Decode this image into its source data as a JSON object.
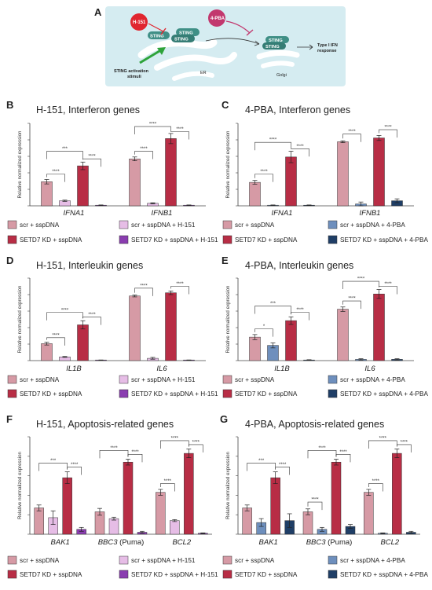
{
  "schematic": {
    "letter": "A",
    "inhibitor1": "H-151",
    "inhibitor2": "4-PBA",
    "sting": "STING",
    "stimuli_line1": "STING activation",
    "stimuli_line2": "stimuli",
    "er": "ER",
    "golgi": "Golgi",
    "response_line1": "Type I IFN",
    "response_line2": "response",
    "colors": {
      "bg": "#d5ecf1",
      "membrane": "#ffffff",
      "sting": "#3f8f86",
      "h151": "#e0262f",
      "pba": "#c2386e",
      "arrow": "#2ea33a"
    }
  },
  "legends": {
    "h151": [
      "scr + sspDNA",
      "scr + sspDNA + H-151",
      "SETD7 KD + sspDNA",
      "SETD7 KD + sspDNA + H-151"
    ],
    "pba": [
      "scr + sspDNA",
      "scr + sspDNA + 4-PBA",
      "SETD7 KD + sspDNA",
      "SETD7 KD + sspDNA + 4-PBA"
    ]
  },
  "colors": {
    "scr": "#d69aa5",
    "scr_h151": "#e6bde6",
    "kd": "#b82d45",
    "kd_h151": "#8a3db0",
    "scr_pba": "#6e8fbd",
    "kd_pba": "#1f3e66"
  },
  "chart_data": [
    {
      "letter": "B",
      "title": "H-151, Interferon genes",
      "type": "bar",
      "ylabel": "Relative normalized expression",
      "categories": [
        "IFNA1",
        "IFNB1"
      ],
      "palette": [
        "scr",
        "scr_h151",
        "kd",
        "kd_h151"
      ],
      "series": [
        {
          "values": [
            0.38,
            0.74
          ],
          "errors": [
            0.035,
            0.03
          ]
        },
        {
          "values": [
            0.08,
            0.04
          ],
          "errors": [
            0.01,
            0.008
          ]
        },
        {
          "values": [
            0.63,
            1.06
          ],
          "errors": [
            0.06,
            0.08
          ]
        },
        {
          "values": [
            0.01,
            0.01
          ],
          "errors": [
            0.004,
            0.004
          ]
        }
      ],
      "ylim": [
        0,
        1.3
      ],
      "sig": [
        {
          "g": 0,
          "a": 0,
          "b": 1,
          "text": "****",
          "y": 0.5
        },
        {
          "g": 0,
          "a": 0,
          "b": 2,
          "text": "***",
          "y": 0.86
        },
        {
          "g": 0,
          "a": 2,
          "b": 3,
          "text": "****",
          "y": 0.74
        },
        {
          "g": 1,
          "a": 0,
          "b": 1,
          "text": "****",
          "y": 0.86
        },
        {
          "g": 1,
          "a": 0,
          "b": 2,
          "text": "****",
          "y": 1.25
        },
        {
          "g": 1,
          "a": 2,
          "b": 3,
          "text": "****",
          "y": 1.17
        }
      ]
    },
    {
      "letter": "C",
      "title": "4-PBA, Interferon genes",
      "type": "bar",
      "ylabel": "Relative normalized expression",
      "categories": [
        "IFNA1",
        "IFNB1"
      ],
      "palette": [
        "scr",
        "scr_pba",
        "kd",
        "kd_pba"
      ],
      "series": [
        {
          "values": [
            0.37,
            1.01
          ],
          "errors": [
            0.03,
            0.015
          ]
        },
        {
          "values": [
            0.01,
            0.03
          ],
          "errors": [
            0.004,
            0.03
          ]
        },
        {
          "values": [
            0.77,
            1.07
          ],
          "errors": [
            0.09,
            0.04
          ]
        },
        {
          "values": [
            0.01,
            0.08
          ],
          "errors": [
            0.004,
            0.03
          ]
        }
      ],
      "ylim": [
        0,
        1.3
      ],
      "sig": [
        {
          "g": 0,
          "a": 0,
          "b": 1,
          "text": "****",
          "y": 0.5
        },
        {
          "g": 0,
          "a": 0,
          "b": 2,
          "text": "****",
          "y": 1.0
        },
        {
          "g": 0,
          "a": 2,
          "b": 3,
          "text": "****",
          "y": 0.9
        },
        {
          "g": 1,
          "a": 0,
          "b": 1,
          "text": "****",
          "y": 1.13
        },
        {
          "g": 1,
          "a": 2,
          "b": 3,
          "text": "****",
          "y": 1.2
        }
      ]
    },
    {
      "letter": "D",
      "title": "H-151, Interleukin genes",
      "type": "bar",
      "ylabel": "Relative normalized expression",
      "categories": [
        "IL1B",
        "IL6"
      ],
      "palette": [
        "scr",
        "scr_h151",
        "kd",
        "kd_h151"
      ],
      "series": [
        {
          "values": [
            0.37,
            1.41
          ],
          "errors": [
            0.03,
            0.02
          ]
        },
        {
          "values": [
            0.08,
            0.05
          ],
          "errors": [
            0.01,
            0.02
          ]
        },
        {
          "values": [
            0.78,
            1.48
          ],
          "errors": [
            0.09,
            0.04
          ]
        },
        {
          "values": [
            0.01,
            0.01
          ],
          "errors": [
            0.004,
            0.004
          ]
        }
      ],
      "ylim": [
        0,
        1.8
      ],
      "sig": [
        {
          "g": 0,
          "a": 0,
          "b": 1,
          "text": "****",
          "y": 0.5
        },
        {
          "g": 0,
          "a": 0,
          "b": 2,
          "text": "****",
          "y": 1.05
        },
        {
          "g": 0,
          "a": 2,
          "b": 3,
          "text": "****",
          "y": 0.95
        },
        {
          "g": 1,
          "a": 0,
          "b": 1,
          "text": "****",
          "y": 1.58
        },
        {
          "g": 1,
          "a": 2,
          "b": 3,
          "text": "****",
          "y": 1.62
        }
      ]
    },
    {
      "letter": "E",
      "title": "4-PBA, Interleukin genes",
      "type": "bar",
      "ylabel": "Relative normalized expression",
      "categories": [
        "IL1B",
        "IL6"
      ],
      "palette": [
        "scr",
        "scr_pba",
        "kd",
        "kd_pba"
      ],
      "series": [
        {
          "values": [
            0.37,
            0.81
          ],
          "errors": [
            0.04,
            0.035
          ]
        },
        {
          "values": [
            0.24,
            0.02
          ],
          "errors": [
            0.04,
            0.01
          ]
        },
        {
          "values": [
            0.63,
            1.05
          ],
          "errors": [
            0.06,
            0.07
          ]
        },
        {
          "values": [
            0.01,
            0.02
          ],
          "errors": [
            0.004,
            0.01
          ]
        }
      ],
      "ylim": [
        0,
        1.3
      ],
      "sig": [
        {
          "g": 0,
          "a": 0,
          "b": 1,
          "text": "*",
          "y": 0.5
        },
        {
          "g": 0,
          "a": 0,
          "b": 2,
          "text": "***",
          "y": 0.86
        },
        {
          "g": 0,
          "a": 2,
          "b": 3,
          "text": "****",
          "y": 0.76
        },
        {
          "g": 1,
          "a": 0,
          "b": 1,
          "text": "****",
          "y": 0.94
        },
        {
          "g": 1,
          "a": 0,
          "b": 2,
          "text": "****",
          "y": 1.25
        },
        {
          "g": 1,
          "a": 2,
          "b": 3,
          "text": "****",
          "y": 1.17
        }
      ]
    },
    {
      "letter": "F",
      "title": "H-151, Apoptosis-related genes",
      "type": "bar",
      "ylabel": "Relative normalized expression",
      "categories": [
        "BAK1",
        "BBC3",
        "BCL2"
      ],
      "category_suffix": [
        "",
        " (Puma)",
        ""
      ],
      "palette": [
        "scr",
        "scr_h151",
        "kd",
        "kd_h151"
      ],
      "series": [
        {
          "values": [
            0.27,
            0.23,
            0.43
          ],
          "errors": [
            0.03,
            0.035,
            0.03
          ]
        },
        {
          "values": [
            0.17,
            0.16,
            0.14
          ],
          "errors": [
            0.07,
            0.015,
            0.01
          ]
        },
        {
          "values": [
            0.58,
            0.74,
            0.83
          ],
          "errors": [
            0.06,
            0.03,
            0.045
          ]
        },
        {
          "values": [
            0.05,
            0.02,
            0.01
          ],
          "errors": [
            0.02,
            0.01,
            0.004
          ]
        }
      ],
      "ylim": [
        0,
        1.0
      ],
      "sig": [
        {
          "g": 0,
          "a": 0,
          "b": 2,
          "text": "***",
          "y": 0.73
        },
        {
          "g": 0,
          "a": 2,
          "b": 3,
          "text": "****",
          "y": 0.69
        },
        {
          "g": 1,
          "a": 0,
          "b": 2,
          "text": "****",
          "y": 0.86
        },
        {
          "g": 1,
          "a": 2,
          "b": 3,
          "text": "****",
          "y": 0.82
        },
        {
          "g": 2,
          "a": 0,
          "b": 1,
          "text": "****",
          "y": 0.52
        },
        {
          "g": 2,
          "a": 0,
          "b": 2,
          "text": "****",
          "y": 0.96
        },
        {
          "g": 2,
          "a": 2,
          "b": 3,
          "text": "****",
          "y": 0.92
        }
      ]
    },
    {
      "letter": "G",
      "title": "4-PBA, Apoptosis-related genes",
      "type": "bar",
      "ylabel": "Relative normalized expression",
      "categories": [
        "BAK1",
        "BBC3",
        "BCL2"
      ],
      "category_suffix": [
        "",
        " (Puma)",
        ""
      ],
      "palette": [
        "scr",
        "scr_pba",
        "kd",
        "kd_pba"
      ],
      "series": [
        {
          "values": [
            0.27,
            0.23,
            0.43
          ],
          "errors": [
            0.03,
            0.03,
            0.03
          ]
        },
        {
          "values": [
            0.12,
            0.05,
            0.01
          ],
          "errors": [
            0.04,
            0.02,
            0.004
          ]
        },
        {
          "values": [
            0.58,
            0.74,
            0.83
          ],
          "errors": [
            0.06,
            0.03,
            0.045
          ]
        },
        {
          "values": [
            0.14,
            0.08,
            0.02
          ],
          "errors": [
            0.07,
            0.02,
            0.01
          ]
        }
      ],
      "ylim": [
        0,
        1.0
      ],
      "sig": [
        {
          "g": 0,
          "a": 0,
          "b": 2,
          "text": "***",
          "y": 0.73
        },
        {
          "g": 0,
          "a": 2,
          "b": 3,
          "text": "****",
          "y": 0.69
        },
        {
          "g": 1,
          "a": 0,
          "b": 1,
          "text": "****",
          "y": 0.33
        },
        {
          "g": 1,
          "a": 0,
          "b": 2,
          "text": "****",
          "y": 0.86
        },
        {
          "g": 1,
          "a": 2,
          "b": 3,
          "text": "****",
          "y": 0.82
        },
        {
          "g": 2,
          "a": 0,
          "b": 1,
          "text": "****",
          "y": 0.52
        },
        {
          "g": 2,
          "a": 0,
          "b": 2,
          "text": "****",
          "y": 0.96
        },
        {
          "g": 2,
          "a": 2,
          "b": 3,
          "text": "****",
          "y": 0.92
        }
      ]
    }
  ]
}
